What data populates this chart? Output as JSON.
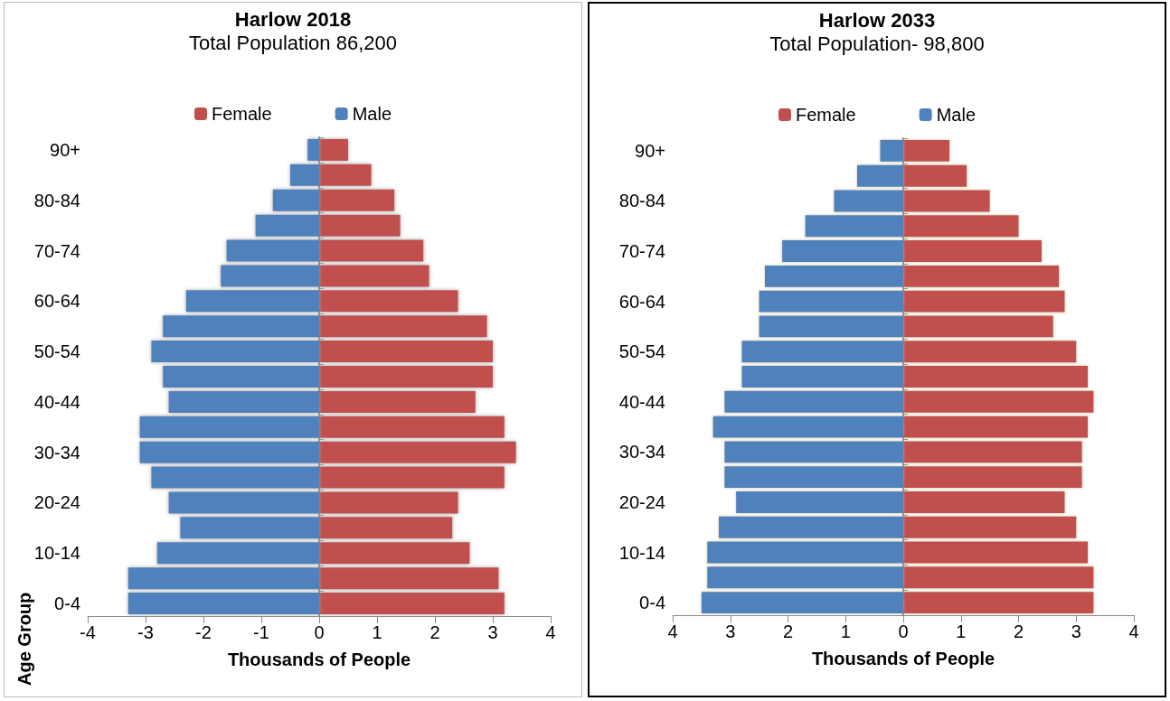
{
  "chart_data": [
    {
      "type": "bar",
      "orientation": "horizontal",
      "title": "Harlow 2018",
      "subtitle": "Total Population 86,200",
      "xlabel": "Thousands of People",
      "ylabel": "Age Group",
      "categories": [
        "90+",
        null,
        "80-84",
        null,
        "70-74",
        null,
        "60-64",
        null,
        "50-54",
        null,
        "40-44",
        null,
        "30-34",
        null,
        "20-24",
        null,
        "10-14",
        null,
        "0-4"
      ],
      "series": [
        {
          "name": "Female",
          "color": "#c0504d",
          "values": [
            0.5,
            0.9,
            1.3,
            1.4,
            1.8,
            1.9,
            2.4,
            2.9,
            3.0,
            3.0,
            2.7,
            3.2,
            3.4,
            3.2,
            2.4,
            2.3,
            2.6,
            3.1,
            3.2
          ]
        },
        {
          "name": "Male",
          "color": "#4f81bd",
          "values": [
            -0.2,
            -0.5,
            -0.8,
            -1.1,
            -1.6,
            -1.7,
            -2.3,
            -2.7,
            -2.9,
            -2.7,
            -2.6,
            -3.1,
            -3.1,
            -2.9,
            -2.6,
            -2.4,
            -2.8,
            -3.3,
            -3.3
          ]
        }
      ],
      "xlim": [
        -4,
        4
      ],
      "xticks": [
        -4,
        -3,
        -2,
        -1,
        0,
        1,
        2,
        3,
        4
      ],
      "legend": "top",
      "stacked": true
    },
    {
      "type": "bar",
      "orientation": "horizontal",
      "title": "Harlow 2033",
      "subtitle": "Total Population- 98,800",
      "xlabel": "Thousands of People",
      "categories": [
        "90+",
        null,
        "80-84",
        null,
        "70-74",
        null,
        "60-64",
        null,
        "50-54",
        null,
        "40-44",
        null,
        "30-34",
        null,
        "20-24",
        null,
        "10-14",
        null,
        "0-4"
      ],
      "series": [
        {
          "name": "Female",
          "color": "#c0504d",
          "values": [
            0.8,
            1.1,
            1.5,
            2.0,
            2.4,
            2.7,
            2.8,
            2.6,
            3.0,
            3.2,
            3.3,
            3.2,
            3.1,
            3.1,
            2.8,
            3.0,
            3.2,
            3.3,
            3.3
          ]
        },
        {
          "name": "Male",
          "color": "#4f81bd",
          "values": [
            -0.4,
            -0.8,
            -1.2,
            -1.7,
            -2.1,
            -2.4,
            -2.5,
            -2.5,
            -2.8,
            -2.8,
            -3.1,
            -3.3,
            -3.1,
            -3.1,
            -2.9,
            -3.2,
            -3.4,
            -3.4,
            -3.5
          ]
        }
      ],
      "xlim": [
        -4,
        4
      ],
      "xticks": [
        {
          "value": -4,
          "label": "4"
        },
        {
          "value": -3,
          "label": "3"
        },
        {
          "value": -2,
          "label": "2"
        },
        {
          "value": -1,
          "label": "1"
        },
        0,
        1,
        2,
        3,
        4
      ],
      "legend": "top",
      "stacked": true
    }
  ]
}
